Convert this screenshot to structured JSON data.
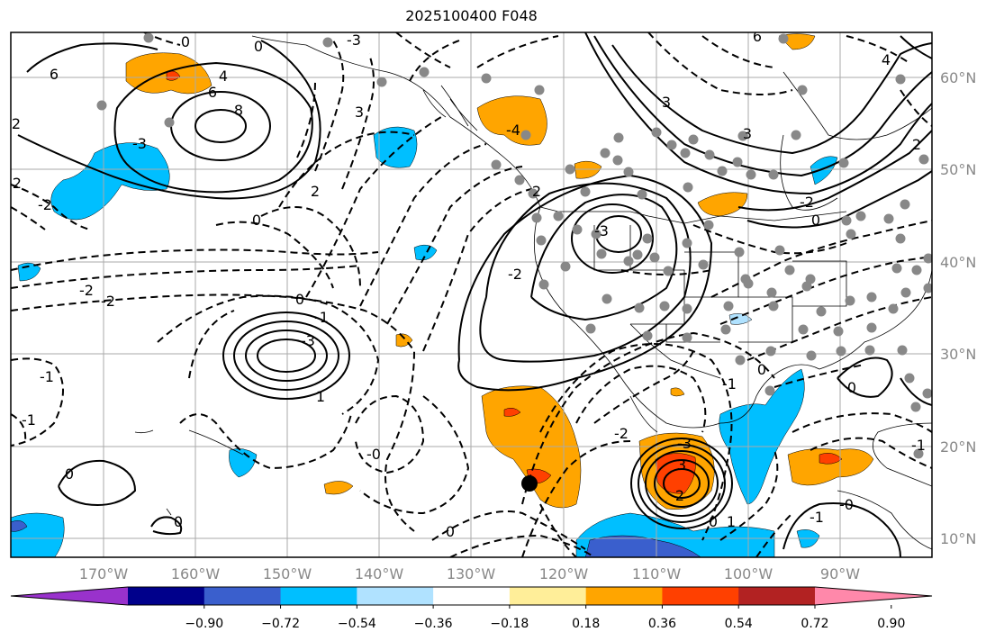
{
  "title": "2025100400 F048",
  "lon_ticks": [
    "170°W",
    "160°W",
    "150°W",
    "140°W",
    "130°W",
    "120°W",
    "110°W",
    "100°W",
    "90°W"
  ],
  "lat_ticks": [
    "60°N",
    "50°N",
    "40°N",
    "30°N",
    "20°N",
    "10°N"
  ],
  "colorbar": {
    "colors": [
      "#9932cc",
      "#00008b",
      "#3a5fcd",
      "#00bfff",
      "#b0e2ff",
      "#ffffff",
      "#ffee99",
      "#ffa500",
      "#ff4000",
      "#b22222",
      "#ff88aa"
    ],
    "ticks": [
      "−0.90",
      "−0.72",
      "−0.54",
      "−0.36",
      "−0.18",
      "0.18",
      "0.36",
      "0.54",
      "0.72",
      "0.90"
    ]
  },
  "contour_labels": [
    {
      "text": "6"
    },
    {
      "text": "4"
    },
    {
      "text": "2"
    },
    {
      "text": "8"
    },
    {
      "text": "6"
    },
    {
      "text": "-3"
    },
    {
      "text": "-3"
    },
    {
      "text": "-4"
    },
    {
      "text": "-2"
    },
    {
      "text": "-2"
    },
    {
      "text": "-2"
    },
    {
      "text": "2"
    },
    {
      "text": "-2"
    },
    {
      "text": "0"
    },
    {
      "text": "-2"
    },
    {
      "text": "2"
    },
    {
      "text": "-3"
    },
    {
      "text": "-1"
    },
    {
      "text": "0"
    },
    {
      "text": "-3"
    },
    {
      "text": "1"
    },
    {
      "text": "-1"
    },
    {
      "text": "-1"
    },
    {
      "text": "0"
    },
    {
      "text": "0"
    },
    {
      "text": "-0"
    },
    {
      "text": "0"
    },
    {
      "text": "-2"
    },
    {
      "text": "3"
    },
    {
      "text": "2"
    },
    {
      "text": "3"
    },
    {
      "text": "1"
    },
    {
      "text": "-1"
    },
    {
      "text": "-3"
    },
    {
      "text": "0"
    },
    {
      "text": "0"
    },
    {
      "text": "-0"
    },
    {
      "text": "0"
    },
    {
      "text": "-1"
    },
    {
      "text": "-2"
    },
    {
      "text": "3"
    },
    {
      "text": "6"
    },
    {
      "text": "4"
    },
    {
      "text": "2"
    },
    {
      "text": "0"
    },
    {
      "text": "0"
    },
    {
      "text": "0"
    },
    {
      "text": "-1"
    },
    {
      "text": "3"
    }
  ]
}
